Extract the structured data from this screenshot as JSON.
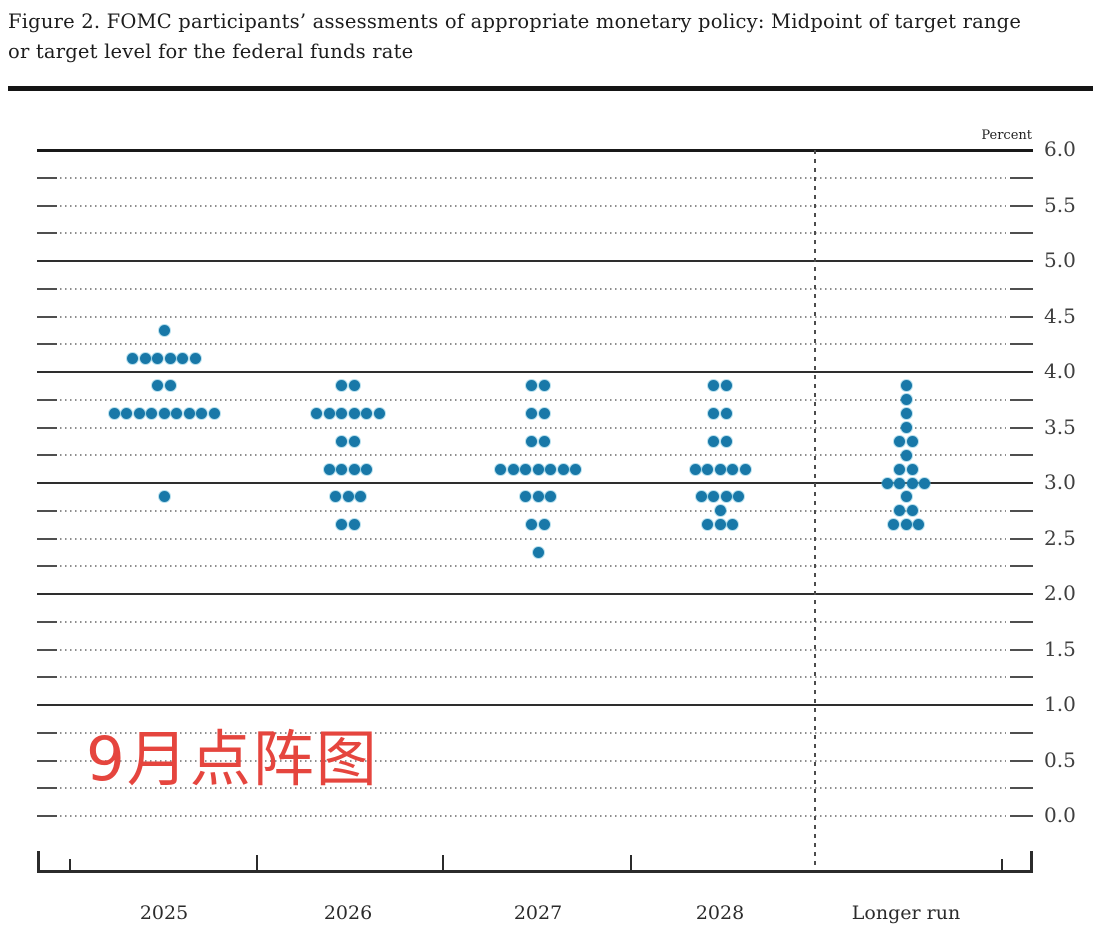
{
  "figure": {
    "title_line1": "Figure 2. FOMC participants’ assessments of appropriate monetary policy: Midpoint of target range",
    "title_line2": "or target level for the federal funds rate"
  },
  "axis": {
    "unit_label": "Percent",
    "y_tick_labels": [
      "6.0",
      "5.5",
      "5.0",
      "4.5",
      "4.0",
      "3.5",
      "3.0",
      "2.5",
      "2.0",
      "1.5",
      "1.0",
      "0.5",
      "0.0"
    ],
    "x_categories": [
      "2025",
      "2026",
      "2027",
      "2028",
      "Longer run"
    ]
  },
  "annotation": {
    "text": "9月点阵图",
    "color": "#e5453e"
  },
  "colors": {
    "dot": "#1878a8",
    "grid_major": "#2e2e2e",
    "grid_minor": "#8d8d8d",
    "annotation_red": "#e5453e"
  },
  "chart_data": {
    "type": "scatter",
    "title": "Figure 2. FOMC participants' assessments of appropriate monetary policy: Midpoint of target range or target level for the federal funds rate",
    "xlabel": "",
    "ylabel": "Percent",
    "ylim": [
      0.0,
      6.0
    ],
    "gridline_interval": 0.25,
    "major_gridlines": [
      6.0,
      5.0,
      4.0,
      3.0,
      2.0,
      1.0
    ],
    "y_axis_label_step": 0.5,
    "grid": true,
    "legend_position": "none",
    "separator_after_category": "2028",
    "categories": [
      "2025",
      "2026",
      "2027",
      "2028",
      "Longer run"
    ],
    "series": [
      {
        "category": "2025",
        "dots": [
          {
            "rate": 4.375,
            "count": 1
          },
          {
            "rate": 4.125,
            "count": 6
          },
          {
            "rate": 3.875,
            "count": 2
          },
          {
            "rate": 3.625,
            "count": 9
          },
          {
            "rate": 2.875,
            "count": 1
          }
        ]
      },
      {
        "category": "2026",
        "dots": [
          {
            "rate": 3.875,
            "count": 2
          },
          {
            "rate": 3.625,
            "count": 6
          },
          {
            "rate": 3.375,
            "count": 2
          },
          {
            "rate": 3.125,
            "count": 4
          },
          {
            "rate": 2.875,
            "count": 3
          },
          {
            "rate": 2.625,
            "count": 2
          }
        ]
      },
      {
        "category": "2027",
        "dots": [
          {
            "rate": 3.875,
            "count": 2
          },
          {
            "rate": 3.625,
            "count": 2
          },
          {
            "rate": 3.375,
            "count": 2
          },
          {
            "rate": 3.125,
            "count": 7
          },
          {
            "rate": 2.875,
            "count": 3
          },
          {
            "rate": 2.625,
            "count": 2
          },
          {
            "rate": 2.375,
            "count": 1
          }
        ]
      },
      {
        "category": "2028",
        "dots": [
          {
            "rate": 3.875,
            "count": 2
          },
          {
            "rate": 3.625,
            "count": 2
          },
          {
            "rate": 3.375,
            "count": 2
          },
          {
            "rate": 3.125,
            "count": 5
          },
          {
            "rate": 2.875,
            "count": 4
          },
          {
            "rate": 2.75,
            "count": 1
          },
          {
            "rate": 2.625,
            "count": 3
          }
        ]
      },
      {
        "category": "Longer run",
        "dots": [
          {
            "rate": 3.875,
            "count": 1
          },
          {
            "rate": 3.75,
            "count": 1
          },
          {
            "rate": 3.625,
            "count": 1
          },
          {
            "rate": 3.5,
            "count": 1
          },
          {
            "rate": 3.375,
            "count": 2
          },
          {
            "rate": 3.25,
            "count": 1
          },
          {
            "rate": 3.125,
            "count": 2
          },
          {
            "rate": 3.0,
            "count": 4
          },
          {
            "rate": 2.875,
            "count": 1
          },
          {
            "rate": 2.75,
            "count": 2
          },
          {
            "rate": 2.625,
            "count": 3
          }
        ]
      }
    ]
  }
}
